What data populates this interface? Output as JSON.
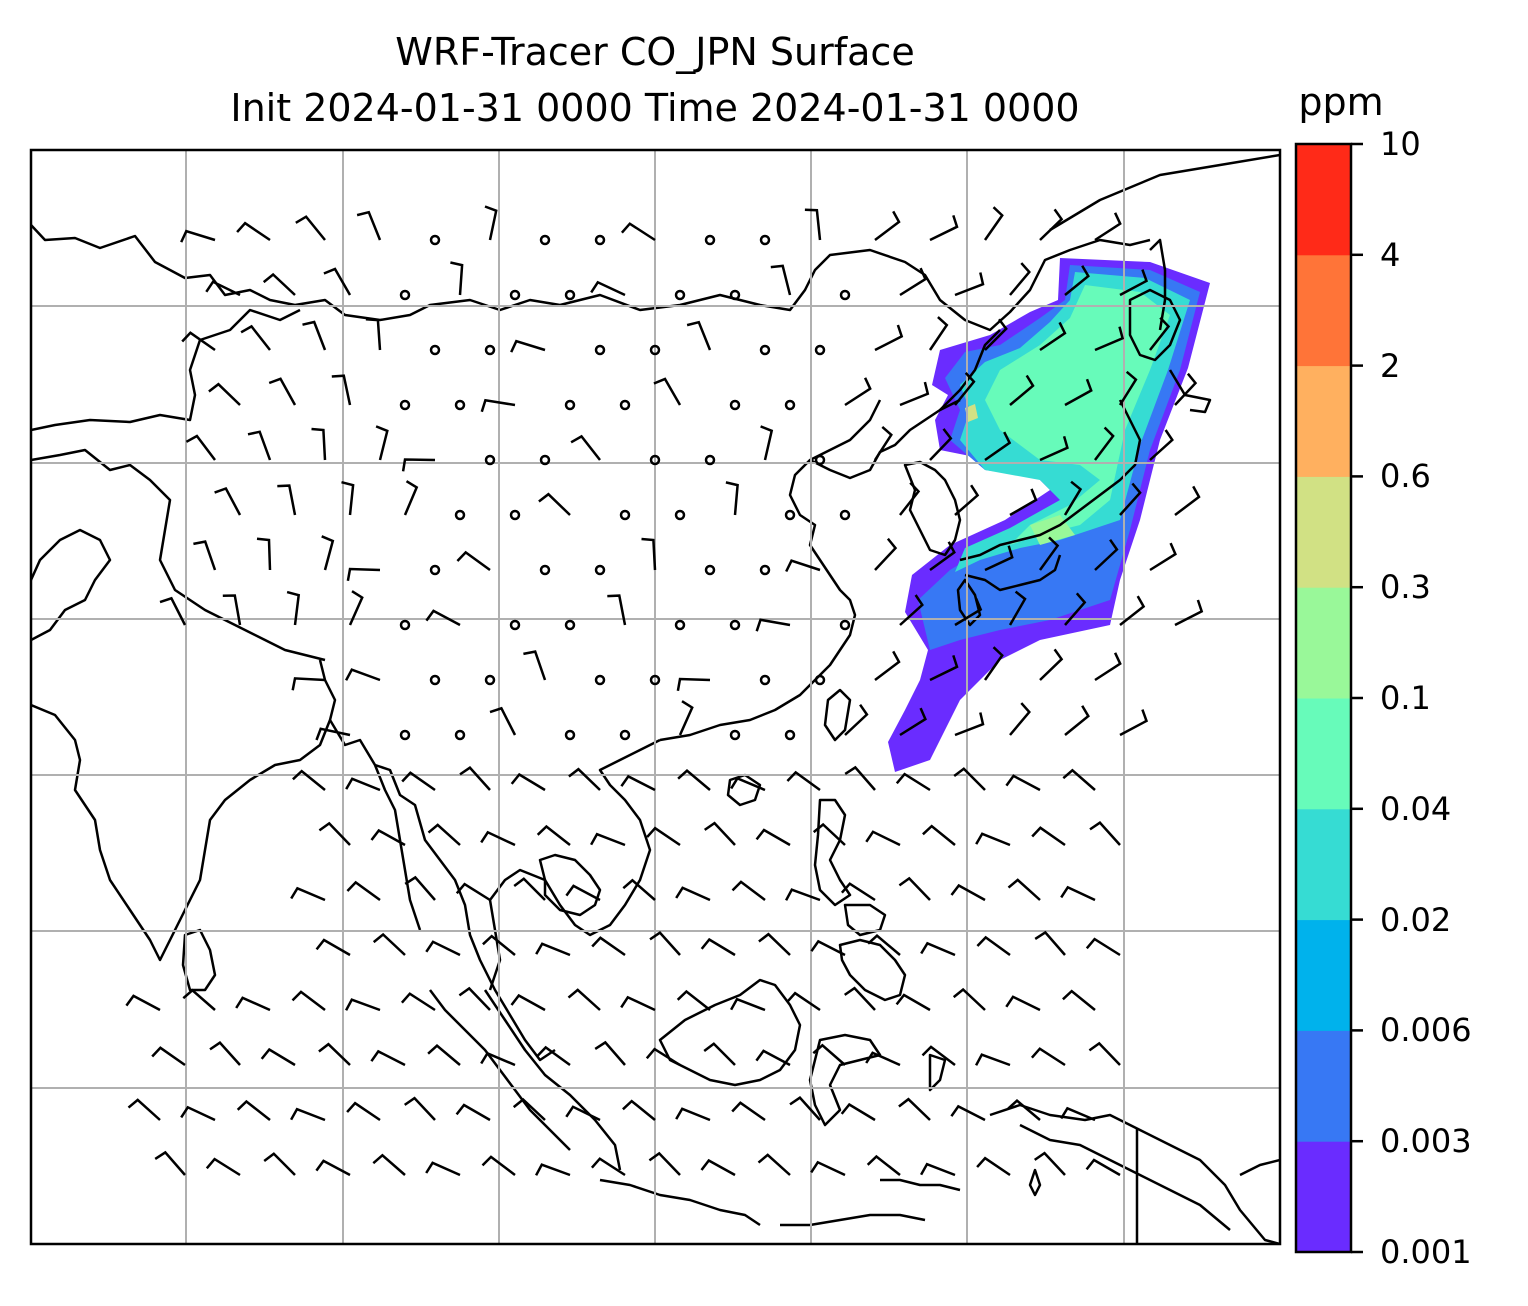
{
  "title": {
    "line1": "WRF-Tracer CO_JPN Surface",
    "line2": "Init 2024-01-31 0000 Time 2024-01-31 0000"
  },
  "colorbar": {
    "unit": "ppm",
    "levels": [
      "0.001",
      "0.003",
      "0.006",
      "0.02",
      "0.04",
      "0.1",
      "0.3",
      "0.6",
      "2",
      "4",
      "10"
    ],
    "colors": [
      "#6a2cff",
      "#3778f4",
      "#00b2ec",
      "#36dcd3",
      "#67fbba",
      "#99f899",
      "#d1e184",
      "#ffb05f",
      "#ff7438",
      "#ff2a18"
    ]
  },
  "map": {
    "gridlines": true,
    "coastline_color": "#000000",
    "grid_color": "#b0b0b0"
  }
}
